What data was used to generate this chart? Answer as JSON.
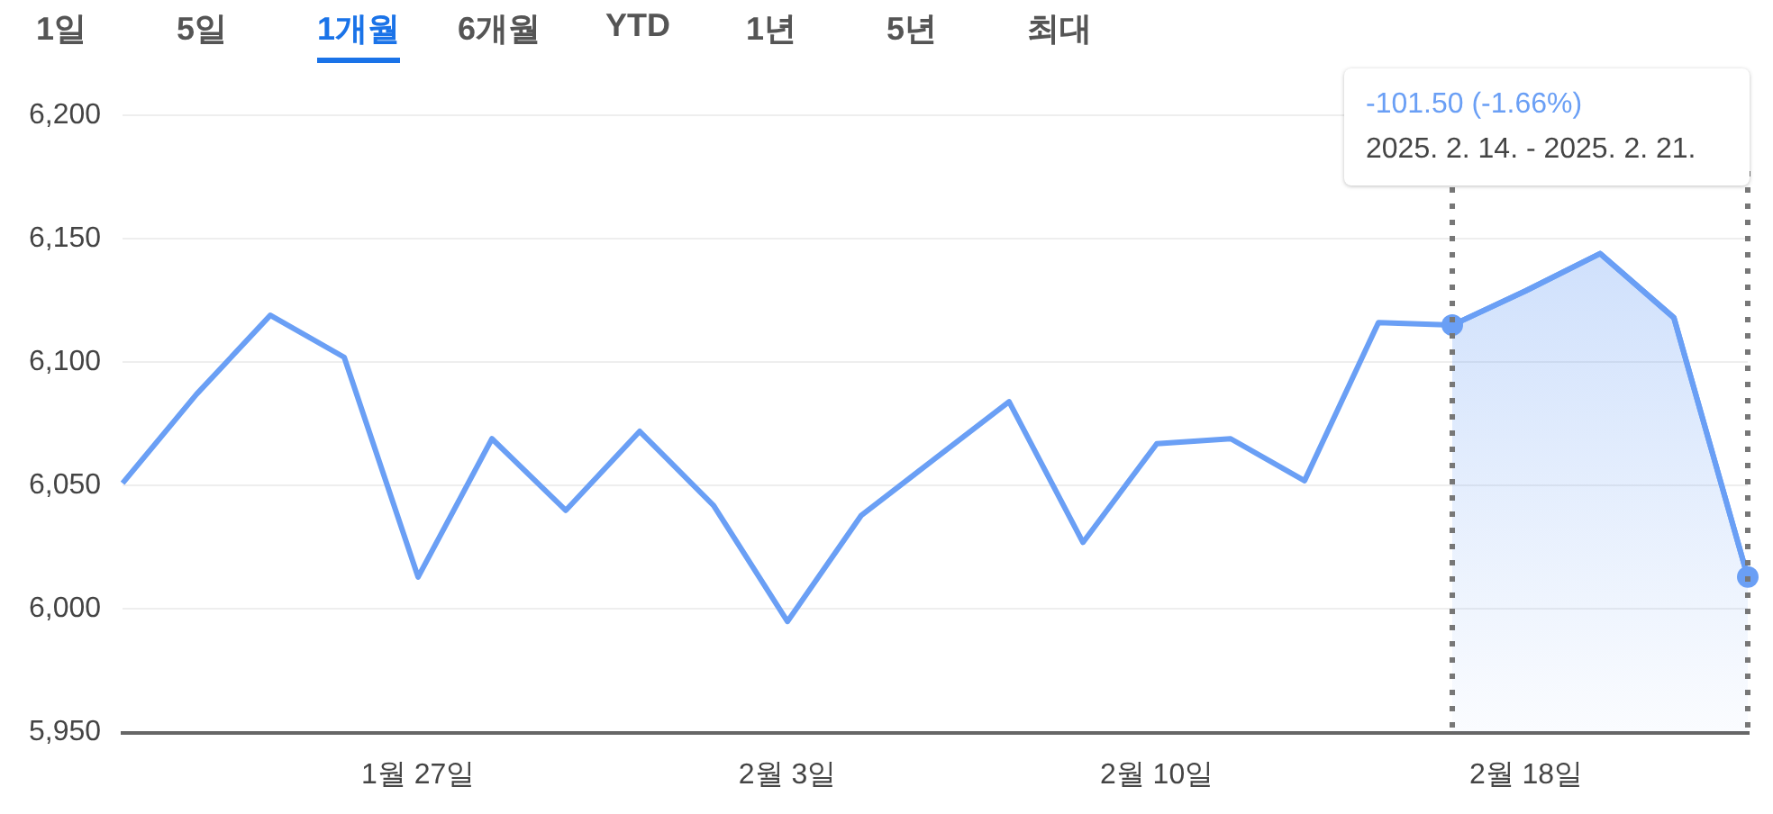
{
  "chart_data": {
    "type": "line",
    "categories": [
      null,
      null,
      null,
      null,
      "1월 27일",
      null,
      null,
      null,
      null,
      "2월 3일",
      null,
      null,
      null,
      null,
      "2월 10일",
      null,
      null,
      null,
      null,
      "2월 18일",
      null,
      null,
      null
    ],
    "series": [
      {
        "type": "line",
        "color": "#6a9ff5",
        "values": [
          6051,
          6087,
          6119,
          6102,
          6013,
          6069,
          6040,
          6072,
          6042,
          5995,
          6038,
          6061,
          6084,
          6027,
          6067,
          6069,
          6052,
          6116,
          6115,
          6129,
          6144,
          6118,
          6013
        ]
      },
      {
        "type": "area",
        "color": "#6a9ff5",
        "values": [
          null,
          null,
          null,
          null,
          null,
          null,
          null,
          null,
          null,
          null,
          null,
          null,
          null,
          null,
          null,
          null,
          null,
          null,
          6115,
          6129,
          6144,
          6118,
          6013
        ]
      }
    ],
    "ylim": [
      5950,
      6200
    ],
    "yticks": [
      {
        "value": 5950,
        "label": "5,950"
      },
      {
        "value": 6000,
        "label": "6,000"
      },
      {
        "value": 6050,
        "label": "6,050"
      },
      {
        "value": 6100,
        "label": "6,100"
      },
      {
        "value": 6150,
        "label": "6,150"
      },
      {
        "value": 6200,
        "label": "6,200"
      }
    ],
    "grid": "y",
    "legend": false,
    "marker": "none",
    "annotations": [
      "1일",
      "5일",
      "1개월",
      "6개월",
      "YTD",
      "1년",
      "5년",
      "최대",
      "-101.50 (-1.66%)",
      "2025. 2. 14. - 2025. 2. 21."
    ]
  }
}
